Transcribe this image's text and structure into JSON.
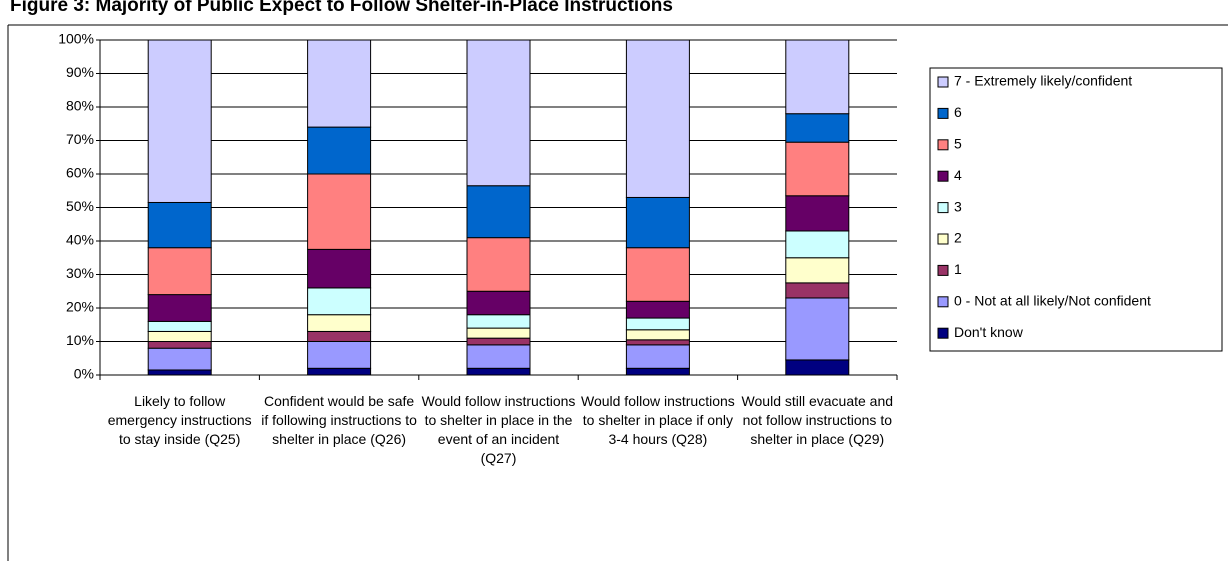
{
  "chart_data": {
    "type": "stacked_bar",
    "title": "Figure 3: Majority of Public Expect to Follow Shelter-in-Place Instructions",
    "categories": [
      "Likely to follow emergency instructions to stay inside (Q25)",
      "Confident would be safe if following instructions to shelter in place (Q26)",
      "Would follow instructions to shelter in place in the event of an incident (Q27)",
      "Would follow instructions to shelter in place if only 3-4 hours (Q28)",
      "Would still evacuate and not follow instructions to shelter in place (Q29)"
    ],
    "series": [
      {
        "name": "Don't know",
        "color": "#000080",
        "values": [
          1.5,
          2,
          2,
          2,
          4.5
        ]
      },
      {
        "name": "0 - Not at all likely/Not confident",
        "color": "#9999ff",
        "values": [
          6.5,
          8,
          7,
          7,
          18.5
        ]
      },
      {
        "name": "1",
        "color": "#993366",
        "values": [
          2,
          3,
          2,
          1.5,
          4.5
        ]
      },
      {
        "name": "2",
        "color": "#ffffcc",
        "values": [
          3,
          5,
          3,
          3,
          7.5
        ]
      },
      {
        "name": "3",
        "color": "#ccffff",
        "values": [
          3,
          8,
          4,
          3.5,
          8
        ]
      },
      {
        "name": "4",
        "color": "#660066",
        "values": [
          8,
          11.5,
          7,
          5,
          10.5
        ]
      },
      {
        "name": "5",
        "color": "#ff8080",
        "values": [
          14,
          22.5,
          16,
          16,
          16
        ]
      },
      {
        "name": "6",
        "color": "#0066cc",
        "values": [
          13.5,
          14,
          15.5,
          15,
          8.5
        ]
      },
      {
        "name": "7 - Extremely likely/confident",
        "color": "#ccccff",
        "values": [
          48.5,
          26,
          43.5,
          47,
          22
        ]
      }
    ],
    "ylim": [
      0,
      100
    ],
    "yticks": [
      {
        "value": 0,
        "label": "0%"
      },
      {
        "value": 10,
        "label": "10%"
      },
      {
        "value": 20,
        "label": "20%"
      },
      {
        "value": 30,
        "label": "30%"
      },
      {
        "value": 40,
        "label": "40%"
      },
      {
        "value": 50,
        "label": "50%"
      },
      {
        "value": 60,
        "label": "60%"
      },
      {
        "value": 70,
        "label": "70%"
      },
      {
        "value": 80,
        "label": "80%"
      },
      {
        "value": 90,
        "label": "90%"
      },
      {
        "value": 100,
        "label": "100%"
      }
    ],
    "grid": true,
    "legend": "right"
  }
}
